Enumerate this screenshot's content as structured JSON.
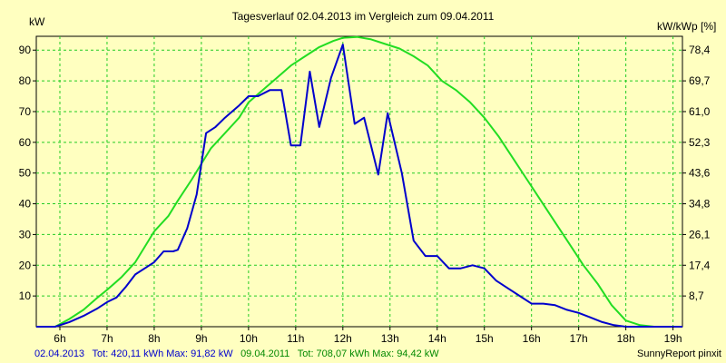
{
  "chart_data": {
    "type": "line",
    "title": "Tagesverlauf 02.04.2013 im Vergleich zum 09.04.2011",
    "ylabel_left": "kW",
    "ylabel_right": "kW/kWp [%]",
    "xlim": [
      5.5,
      19.2
    ],
    "ylim": [
      0,
      94.5
    ],
    "x_ticks": [
      {
        "v": 6,
        "label": "6h"
      },
      {
        "v": 7,
        "label": "7h"
      },
      {
        "v": 8,
        "label": "8h"
      },
      {
        "v": 9,
        "label": "9h"
      },
      {
        "v": 10,
        "label": "10h"
      },
      {
        "v": 11,
        "label": "11h"
      },
      {
        "v": 12,
        "label": "12h"
      },
      {
        "v": 13,
        "label": "13h"
      },
      {
        "v": 14,
        "label": "14h"
      },
      {
        "v": 15,
        "label": "15h"
      },
      {
        "v": 16,
        "label": "16h"
      },
      {
        "v": 17,
        "label": "17h"
      },
      {
        "v": 18,
        "label": "18h"
      },
      {
        "v": 19,
        "label": "19h"
      }
    ],
    "y_ticks_left": [
      {
        "v": 10,
        "label": "10"
      },
      {
        "v": 20,
        "label": "20"
      },
      {
        "v": 30,
        "label": "30"
      },
      {
        "v": 40,
        "label": "40"
      },
      {
        "v": 50,
        "label": "50"
      },
      {
        "v": 60,
        "label": "60"
      },
      {
        "v": 70,
        "label": "70"
      },
      {
        "v": 80,
        "label": "80"
      },
      {
        "v": 90,
        "label": "90"
      }
    ],
    "y_ticks_right": [
      {
        "v": 10,
        "label": "8,7"
      },
      {
        "v": 20,
        "label": "17,4"
      },
      {
        "v": 30,
        "label": "26,1"
      },
      {
        "v": 40,
        "label": "34,8"
      },
      {
        "v": 50,
        "label": "43,6"
      },
      {
        "v": 60,
        "label": "52,3"
      },
      {
        "v": 70,
        "label": "61,0"
      },
      {
        "v": 80,
        "label": "69,7"
      },
      {
        "v": 90,
        "label": "78,4"
      }
    ],
    "grid": true,
    "colors": {
      "series_2013": "#0000cc",
      "series_2011": "#22dd22",
      "grid": "#22cc22",
      "background": "#ffffc0"
    },
    "series": [
      {
        "date": "02.04.2013",
        "color": "#0000cc",
        "points": [
          [
            5.5,
            0
          ],
          [
            5.9,
            0
          ],
          [
            6.2,
            1.5
          ],
          [
            6.5,
            3.5
          ],
          [
            6.8,
            6
          ],
          [
            7.0,
            8
          ],
          [
            7.2,
            9.5
          ],
          [
            7.4,
            13
          ],
          [
            7.6,
            17
          ],
          [
            7.8,
            19
          ],
          [
            8.0,
            21
          ],
          [
            8.2,
            24.5
          ],
          [
            8.4,
            24.5
          ],
          [
            8.5,
            25
          ],
          [
            8.7,
            32
          ],
          [
            8.9,
            43
          ],
          [
            9.1,
            63
          ],
          [
            9.3,
            65
          ],
          [
            9.5,
            68
          ],
          [
            9.8,
            72
          ],
          [
            10.0,
            75
          ],
          [
            10.2,
            75
          ],
          [
            10.45,
            77
          ],
          [
            10.7,
            77
          ],
          [
            10.9,
            59
          ],
          [
            11.1,
            59
          ],
          [
            11.3,
            83
          ],
          [
            11.5,
            65
          ],
          [
            11.75,
            81
          ],
          [
            12.0,
            91.8
          ],
          [
            12.25,
            66
          ],
          [
            12.45,
            68
          ],
          [
            12.75,
            49.5
          ],
          [
            12.95,
            69.5
          ],
          [
            13.25,
            50
          ],
          [
            13.5,
            28
          ],
          [
            13.75,
            23
          ],
          [
            14.0,
            23
          ],
          [
            14.25,
            19
          ],
          [
            14.5,
            19
          ],
          [
            14.75,
            20
          ],
          [
            15.0,
            19
          ],
          [
            15.25,
            15
          ],
          [
            15.5,
            12.5
          ],
          [
            15.75,
            10
          ],
          [
            16.0,
            7.5
          ],
          [
            16.25,
            7.5
          ],
          [
            16.5,
            7
          ],
          [
            16.75,
            5.5
          ],
          [
            17.0,
            4.5
          ],
          [
            17.25,
            3
          ],
          [
            17.5,
            1.5
          ],
          [
            17.75,
            0.5
          ],
          [
            18.0,
            0
          ],
          [
            18.3,
            0
          ],
          [
            19.2,
            0
          ]
        ]
      },
      {
        "date": "09.04.2011",
        "color": "#22dd22",
        "points": [
          [
            5.5,
            0
          ],
          [
            5.9,
            0
          ],
          [
            6.2,
            2.5
          ],
          [
            6.5,
            5.5
          ],
          [
            6.8,
            9.5
          ],
          [
            7.0,
            12
          ],
          [
            7.3,
            16
          ],
          [
            7.6,
            21
          ],
          [
            7.8,
            26
          ],
          [
            8.0,
            31
          ],
          [
            8.3,
            36
          ],
          [
            8.5,
            41
          ],
          [
            8.8,
            48
          ],
          [
            9.0,
            53
          ],
          [
            9.2,
            58
          ],
          [
            9.5,
            63
          ],
          [
            9.8,
            68
          ],
          [
            10.0,
            73
          ],
          [
            10.3,
            77
          ],
          [
            10.6,
            81
          ],
          [
            10.9,
            85
          ],
          [
            11.2,
            88
          ],
          [
            11.5,
            91
          ],
          [
            11.8,
            93
          ],
          [
            12.0,
            94
          ],
          [
            12.3,
            94.3
          ],
          [
            12.6,
            93.5
          ],
          [
            12.9,
            92
          ],
          [
            13.2,
            90.5
          ],
          [
            13.5,
            88
          ],
          [
            13.8,
            85
          ],
          [
            14.1,
            80
          ],
          [
            14.4,
            77
          ],
          [
            14.7,
            73
          ],
          [
            15.0,
            68
          ],
          [
            15.3,
            62
          ],
          [
            15.6,
            55
          ],
          [
            15.9,
            48
          ],
          [
            16.2,
            41
          ],
          [
            16.5,
            34
          ],
          [
            16.8,
            27
          ],
          [
            17.1,
            20
          ],
          [
            17.4,
            14
          ],
          [
            17.7,
            7
          ],
          [
            18.0,
            2
          ],
          [
            18.3,
            0.5
          ],
          [
            18.6,
            0
          ],
          [
            19.2,
            0
          ]
        ]
      }
    ],
    "footer": {
      "s2013_date": "02.04.2013",
      "s2013_stats": "Tot: 420,11 kWh Max: 91,82 kW",
      "s2011_date": "09.04.2011",
      "s2011_stats": "Tot: 708,07 kWh Max: 94,42 kW",
      "credit": "SunnyReport pinxit"
    }
  }
}
